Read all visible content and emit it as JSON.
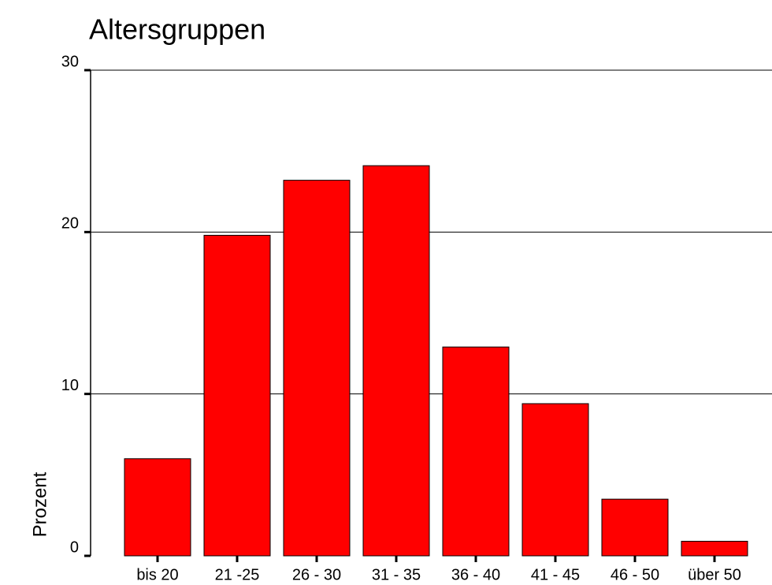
{
  "chart_data": {
    "type": "bar",
    "title": "Altersgruppen",
    "y_label": "Prozent",
    "categories": [
      "bis 20",
      "21 -25",
      "26 - 30",
      "31 - 35",
      "36 - 40",
      "41 - 45",
      "46 - 50",
      "über 50"
    ],
    "values": [
      6.0,
      19.8,
      23.2,
      24.1,
      12.9,
      9.4,
      3.5,
      0.9
    ],
    "color": "#ff0000",
    "ylim": [
      0,
      30
    ],
    "yticks": [
      0,
      10,
      20,
      30
    ],
    "grid": true
  }
}
